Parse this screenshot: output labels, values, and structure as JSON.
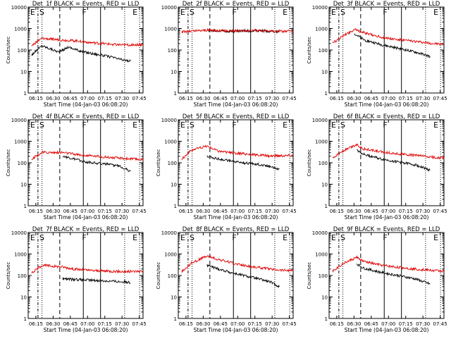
{
  "colors": {
    "events": "#000000",
    "lld": "#e00000",
    "axis": "#000000"
  },
  "chart_data": [
    {
      "type": "line",
      "title": "Det_1f BLACK = Events, RED = LLD",
      "xlabel": "Start Time (04-Jan-03 06:08:20)",
      "ylabel": "Counts/sec",
      "xticks": [
        "06:15",
        "06:30",
        "06:45",
        "07:00",
        "07:15",
        "07:30",
        "07:45"
      ],
      "yticks": [
        "1",
        "10",
        "100",
        "1000",
        "10000"
      ],
      "ylim": [
        1,
        10000
      ],
      "scale": "log",
      "xlim_minutes": [
        0,
        100
      ],
      "grid": false,
      "markers": [
        {
          "label": "E",
          "t": 0
        },
        {
          "label": "S",
          "t": 8
        },
        {
          "label": "F",
          "t": 45
        },
        {
          "label": "E",
          "t": 89
        }
      ],
      "series": [
        {
          "name": "Events",
          "t": [
            3,
            12,
            27,
            35,
            45,
            55,
            70,
            82,
            89
          ],
          "y": [
            60,
            160,
            80,
            140,
            90,
            70,
            50,
            35,
            30
          ]
        },
        {
          "name": "LLD",
          "t": [
            3,
            12,
            27,
            35,
            45,
            55,
            70,
            82,
            100
          ],
          "y": [
            160,
            350,
            300,
            280,
            260,
            220,
            190,
            170,
            180
          ]
        }
      ]
    },
    {
      "type": "line",
      "title": "Det_2f BLACK = Events, RED = LLD",
      "xlabel": "Start Time (04-Jan-03 06:08:20)",
      "ylabel": "",
      "xticks": [
        "06:15",
        "06:30",
        "06:45",
        "07:00",
        "07:15",
        "07:30",
        "07:45"
      ],
      "yticks": [
        "1",
        "10",
        "100",
        "1000",
        "10000"
      ],
      "ylim": [
        1,
        10000
      ],
      "scale": "log",
      "xlim_minutes": [
        0,
        100
      ],
      "grid": false,
      "markers": [
        {
          "label": "E",
          "t": 0
        },
        {
          "label": "S",
          "t": 8
        },
        {
          "label": "F",
          "t": 45
        },
        {
          "label": "E",
          "t": 89
        }
      ],
      "series": [
        {
          "name": "Events",
          "t": [
            25,
            35,
            50,
            65,
            80,
            88
          ],
          "y": [
            800,
            780,
            760,
            800,
            750,
            700
          ]
        },
        {
          "name": "LLD",
          "t": [
            3,
            25,
            35,
            50,
            65,
            80,
            100
          ],
          "y": [
            700,
            850,
            800,
            780,
            820,
            760,
            740
          ]
        }
      ]
    },
    {
      "type": "line",
      "title": "Det_3f BLACK = Events, RED = LLD",
      "xlabel": "Start Time (04-Jan-03 06:08:20)",
      "ylabel": "Counts/sec",
      "xticks": [
        "06:15",
        "06:30",
        "06:45",
        "07:00",
        "07:15",
        "07:30",
        "07:45"
      ],
      "yticks": [
        "1",
        "10",
        "100",
        "1000",
        "10000"
      ],
      "ylim": [
        1,
        10000
      ],
      "scale": "log",
      "xlim_minutes": [
        0,
        100
      ],
      "grid": false,
      "markers": [
        {
          "label": "E",
          "t": 0
        },
        {
          "label": "S",
          "t": 8
        },
        {
          "label": "F",
          "t": 45
        },
        {
          "label": "E",
          "t": 89
        }
      ],
      "series": [
        {
          "name": "Events",
          "t": [
            22,
            30,
            45,
            60,
            75,
            88
          ],
          "y": [
            600,
            300,
            180,
            120,
            80,
            50
          ]
        },
        {
          "name": "LLD",
          "t": [
            3,
            12,
            22,
            30,
            45,
            60,
            75,
            90,
            100
          ],
          "y": [
            200,
            450,
            900,
            650,
            400,
            300,
            250,
            200,
            180
          ]
        }
      ]
    },
    {
      "type": "line",
      "title": "Det_4f BLACK = Events, RED = LLD",
      "xlabel": "Start Time (04-Jan-03 06:08:20)",
      "ylabel": "Counts/sec",
      "xticks": [
        "06:15",
        "06:30",
        "06:45",
        "07:00",
        "07:15",
        "07:30",
        "07:45"
      ],
      "yticks": [
        "1",
        "10",
        "100",
        "1000",
        "10000"
      ],
      "ylim": [
        1,
        10000
      ],
      "scale": "log",
      "xlim_minutes": [
        0,
        100
      ],
      "grid": false,
      "markers": [
        {
          "label": "E",
          "t": 0
        },
        {
          "label": "S",
          "t": 8
        },
        {
          "label": "F",
          "t": 45
        },
        {
          "label": "E",
          "t": 89
        }
      ],
      "series": [
        {
          "name": "Events",
          "t": [
            30,
            35,
            50,
            65,
            80,
            89
          ],
          "y": [
            200,
            170,
            110,
            90,
            70,
            40
          ]
        },
        {
          "name": "LLD",
          "t": [
            3,
            12,
            30,
            45,
            60,
            75,
            100
          ],
          "y": [
            150,
            300,
            300,
            230,
            200,
            170,
            140
          ]
        }
      ]
    },
    {
      "type": "line",
      "title": "Det_5f BLACK = Events, RED = LLD",
      "xlabel": "Start Time (04-Jan-03 06:08:20)",
      "ylabel": "Counts/sec",
      "xticks": [
        "06:15",
        "06:30",
        "06:45",
        "07:00",
        "07:15",
        "07:30",
        "07:45"
      ],
      "yticks": [
        "1",
        "10",
        "100",
        "1000",
        "10000"
      ],
      "ylim": [
        1,
        10000
      ],
      "scale": "log",
      "xlim_minutes": [
        0,
        100
      ],
      "grid": false,
      "markers": [
        {
          "label": "E",
          "t": 0
        },
        {
          "label": "S",
          "t": 8
        },
        {
          "label": "F",
          "t": 45
        },
        {
          "label": "E",
          "t": 89
        }
      ],
      "series": [
        {
          "name": "Events",
          "t": [
            25,
            35,
            50,
            65,
            80,
            88
          ],
          "y": [
            200,
            150,
            110,
            90,
            70,
            50
          ]
        },
        {
          "name": "LLD",
          "t": [
            3,
            12,
            25,
            35,
            50,
            65,
            80,
            100
          ],
          "y": [
            150,
            400,
            600,
            350,
            280,
            240,
            210,
            220
          ]
        }
      ]
    },
    {
      "type": "line",
      "title": "Det_6f BLACK = Events, RED = LLD",
      "xlabel": "Start Time (04-Jan-03 06:08:20)",
      "ylabel": "Counts/sec",
      "xticks": [
        "06:15",
        "06:30",
        "06:45",
        "07:00",
        "07:15",
        "07:30",
        "07:45"
      ],
      "yticks": [
        "1",
        "10",
        "100",
        "1000",
        "10000"
      ],
      "ylim": [
        1,
        10000
      ],
      "scale": "log",
      "xlim_minutes": [
        0,
        100
      ],
      "grid": false,
      "markers": [
        {
          "label": "E",
          "t": 0
        },
        {
          "label": "S",
          "t": 8
        },
        {
          "label": "F",
          "t": 45
        },
        {
          "label": "E",
          "t": 89
        }
      ],
      "series": [
        {
          "name": "Events",
          "t": [
            24,
            30,
            45,
            60,
            75,
            88
          ],
          "y": [
            400,
            250,
            150,
            110,
            80,
            45
          ]
        },
        {
          "name": "LLD",
          "t": [
            3,
            12,
            24,
            30,
            45,
            60,
            75,
            90,
            100
          ],
          "y": [
            170,
            350,
            700,
            450,
            320,
            260,
            220,
            180,
            170
          ]
        }
      ]
    },
    {
      "type": "line",
      "title": "Det_7f BLACK = Events, RED = LLD",
      "xlabel": "Start Time (04-Jan-03 06:08:20)",
      "ylabel": "Counts/sec",
      "xticks": [
        "06:15",
        "06:30",
        "06:45",
        "07:00",
        "07:15",
        "07:30",
        "07:45"
      ],
      "yticks": [
        "1",
        "10",
        "100",
        "1000",
        "10000"
      ],
      "ylim": [
        1,
        10000
      ],
      "scale": "log",
      "xlim_minutes": [
        0,
        100
      ],
      "grid": false,
      "markers": [
        {
          "label": "E",
          "t": 0
        },
        {
          "label": "S",
          "t": 8
        },
        {
          "label": "F",
          "t": 45
        },
        {
          "label": "E",
          "t": 89
        }
      ],
      "series": [
        {
          "name": "Events",
          "t": [
            30,
            40,
            55,
            70,
            85,
            89
          ],
          "y": [
            70,
            65,
            60,
            55,
            50,
            45
          ]
        },
        {
          "name": "LLD",
          "t": [
            3,
            12,
            30,
            40,
            55,
            70,
            85,
            100
          ],
          "y": [
            130,
            300,
            250,
            200,
            170,
            160,
            150,
            160
          ]
        }
      ]
    },
    {
      "type": "line",
      "title": "Det_8f BLACK = Events, RED = LLD",
      "xlabel": "Start Time (04-Jan-03 06:08:20)",
      "ylabel": "Counts/sec",
      "xticks": [
        "06:15",
        "06:30",
        "06:45",
        "07:00",
        "07:15",
        "07:30",
        "07:45"
      ],
      "yticks": [
        "1",
        "10",
        "100",
        "1000",
        "10000"
      ],
      "ylim": [
        1,
        10000
      ],
      "scale": "log",
      "xlim_minutes": [
        0,
        100
      ],
      "grid": false,
      "markers": [
        {
          "label": "E",
          "t": 0
        },
        {
          "label": "S",
          "t": 8
        },
        {
          "label": "F",
          "t": 45
        },
        {
          "label": "E",
          "t": 89
        }
      ],
      "series": [
        {
          "name": "Events",
          "t": [
            25,
            35,
            50,
            65,
            80,
            88
          ],
          "y": [
            300,
            200,
            120,
            80,
            50,
            30
          ]
        },
        {
          "name": "LLD",
          "t": [
            3,
            12,
            25,
            35,
            50,
            65,
            80,
            90,
            100
          ],
          "y": [
            150,
            400,
            800,
            550,
            350,
            250,
            200,
            180,
            170
          ]
        }
      ]
    },
    {
      "type": "line",
      "title": "Det_9f BLACK = Events, RED = LLD",
      "xlabel": "Start Time (04-Jan-03 06:08:20)",
      "ylabel": "Counts/sec",
      "xticks": [
        "06:15",
        "06:30",
        "06:45",
        "07:00",
        "07:15",
        "07:30",
        "07:45"
      ],
      "yticks": [
        "1",
        "10",
        "100",
        "1000",
        "10000"
      ],
      "ylim": [
        1,
        10000
      ],
      "scale": "log",
      "xlim_minutes": [
        0,
        100
      ],
      "grid": false,
      "markers": [
        {
          "label": "E",
          "t": 0
        },
        {
          "label": "S",
          "t": 8
        },
        {
          "label": "F",
          "t": 45
        },
        {
          "label": "E",
          "t": 89
        }
      ],
      "series": [
        {
          "name": "Events",
          "t": [
            24,
            30,
            45,
            60,
            75,
            88
          ],
          "y": [
            350,
            220,
            140,
            100,
            70,
            40
          ]
        },
        {
          "name": "LLD",
          "t": [
            3,
            12,
            24,
            30,
            45,
            60,
            75,
            90,
            100
          ],
          "y": [
            160,
            350,
            700,
            450,
            300,
            240,
            200,
            170,
            160
          ]
        }
      ]
    }
  ]
}
